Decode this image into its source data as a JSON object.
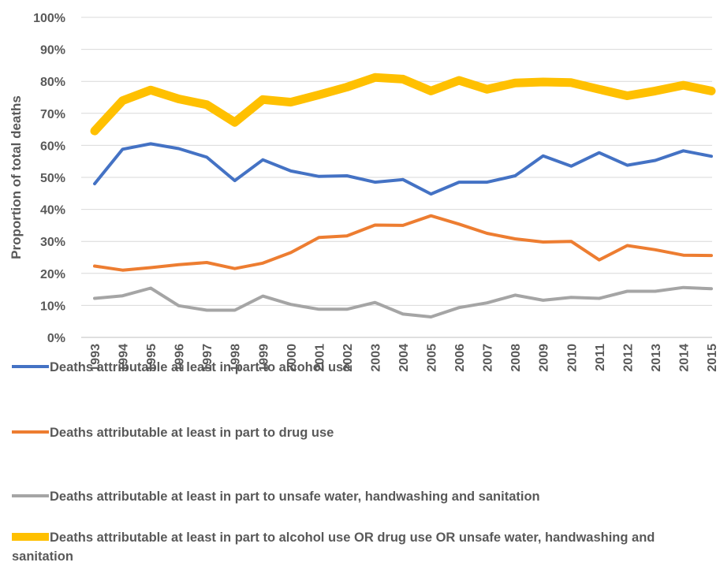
{
  "chart_data": {
    "type": "line",
    "title": "",
    "xlabel": "",
    "ylabel": "Proportion of total deaths",
    "ylim": [
      0,
      100
    ],
    "y_tick_labels": [
      "0%",
      "10%",
      "20%",
      "30%",
      "40%",
      "50%",
      "60%",
      "70%",
      "80%",
      "90%",
      "100%"
    ],
    "grid": true,
    "legend_position": "bottom",
    "categories": [
      "1993",
      "1994",
      "1995",
      "1996",
      "1997",
      "1998",
      "1999",
      "2000",
      "2001",
      "2002",
      "2003",
      "2004",
      "2005",
      "2006",
      "2007",
      "2008",
      "2009",
      "2010",
      "2011",
      "2012",
      "2013",
      "2014",
      "2015"
    ],
    "series": [
      {
        "name": "Deaths attributable at least in part to alcohol use",
        "color": "#4472C4",
        "values": [
          48,
          58.8,
          60.5,
          59,
          56.3,
          49,
          55.5,
          52,
          50.3,
          50.5,
          48.5,
          49.3,
          44.8,
          48.5,
          48.5,
          50.5,
          56.7,
          53.5,
          57.7,
          53.8,
          55.3,
          58.3,
          56.6
        ]
      },
      {
        "name": "Deaths attributable at least in part to drug use",
        "color": "#ED7D31",
        "values": [
          22.3,
          21,
          21.8,
          22.7,
          23.4,
          21.5,
          23.2,
          26.5,
          31.2,
          31.7,
          35.1,
          35,
          38,
          35.4,
          32.5,
          30.8,
          29.8,
          30,
          24.2,
          28.7,
          27.4,
          25.7,
          25.6
        ]
      },
      {
        "name": "Deaths attributable at least in part to unsafe water, handwashing and sanitation",
        "color": "#A5A5A5",
        "values": [
          12.2,
          13,
          15.4,
          9.9,
          8.5,
          8.5,
          12.9,
          10.3,
          8.8,
          8.8,
          10.9,
          7.3,
          6.4,
          9.3,
          10.8,
          13.2,
          11.6,
          12.5,
          12.2,
          14.4,
          14.4,
          15.6,
          15.2
        ]
      },
      {
        "name": "Deaths attributable at least in part to alcohol use OR drug use OR unsafe water, handwashing and sanitation",
        "color": "#FFC000",
        "values": [
          64.5,
          74,
          77.3,
          74.5,
          72.7,
          67.2,
          74.3,
          73.5,
          75.8,
          78.2,
          81.2,
          80.7,
          77,
          80.3,
          77.5,
          79.5,
          79.8,
          79.6,
          77.5,
          75.5,
          77,
          78.8,
          77
        ]
      }
    ]
  }
}
